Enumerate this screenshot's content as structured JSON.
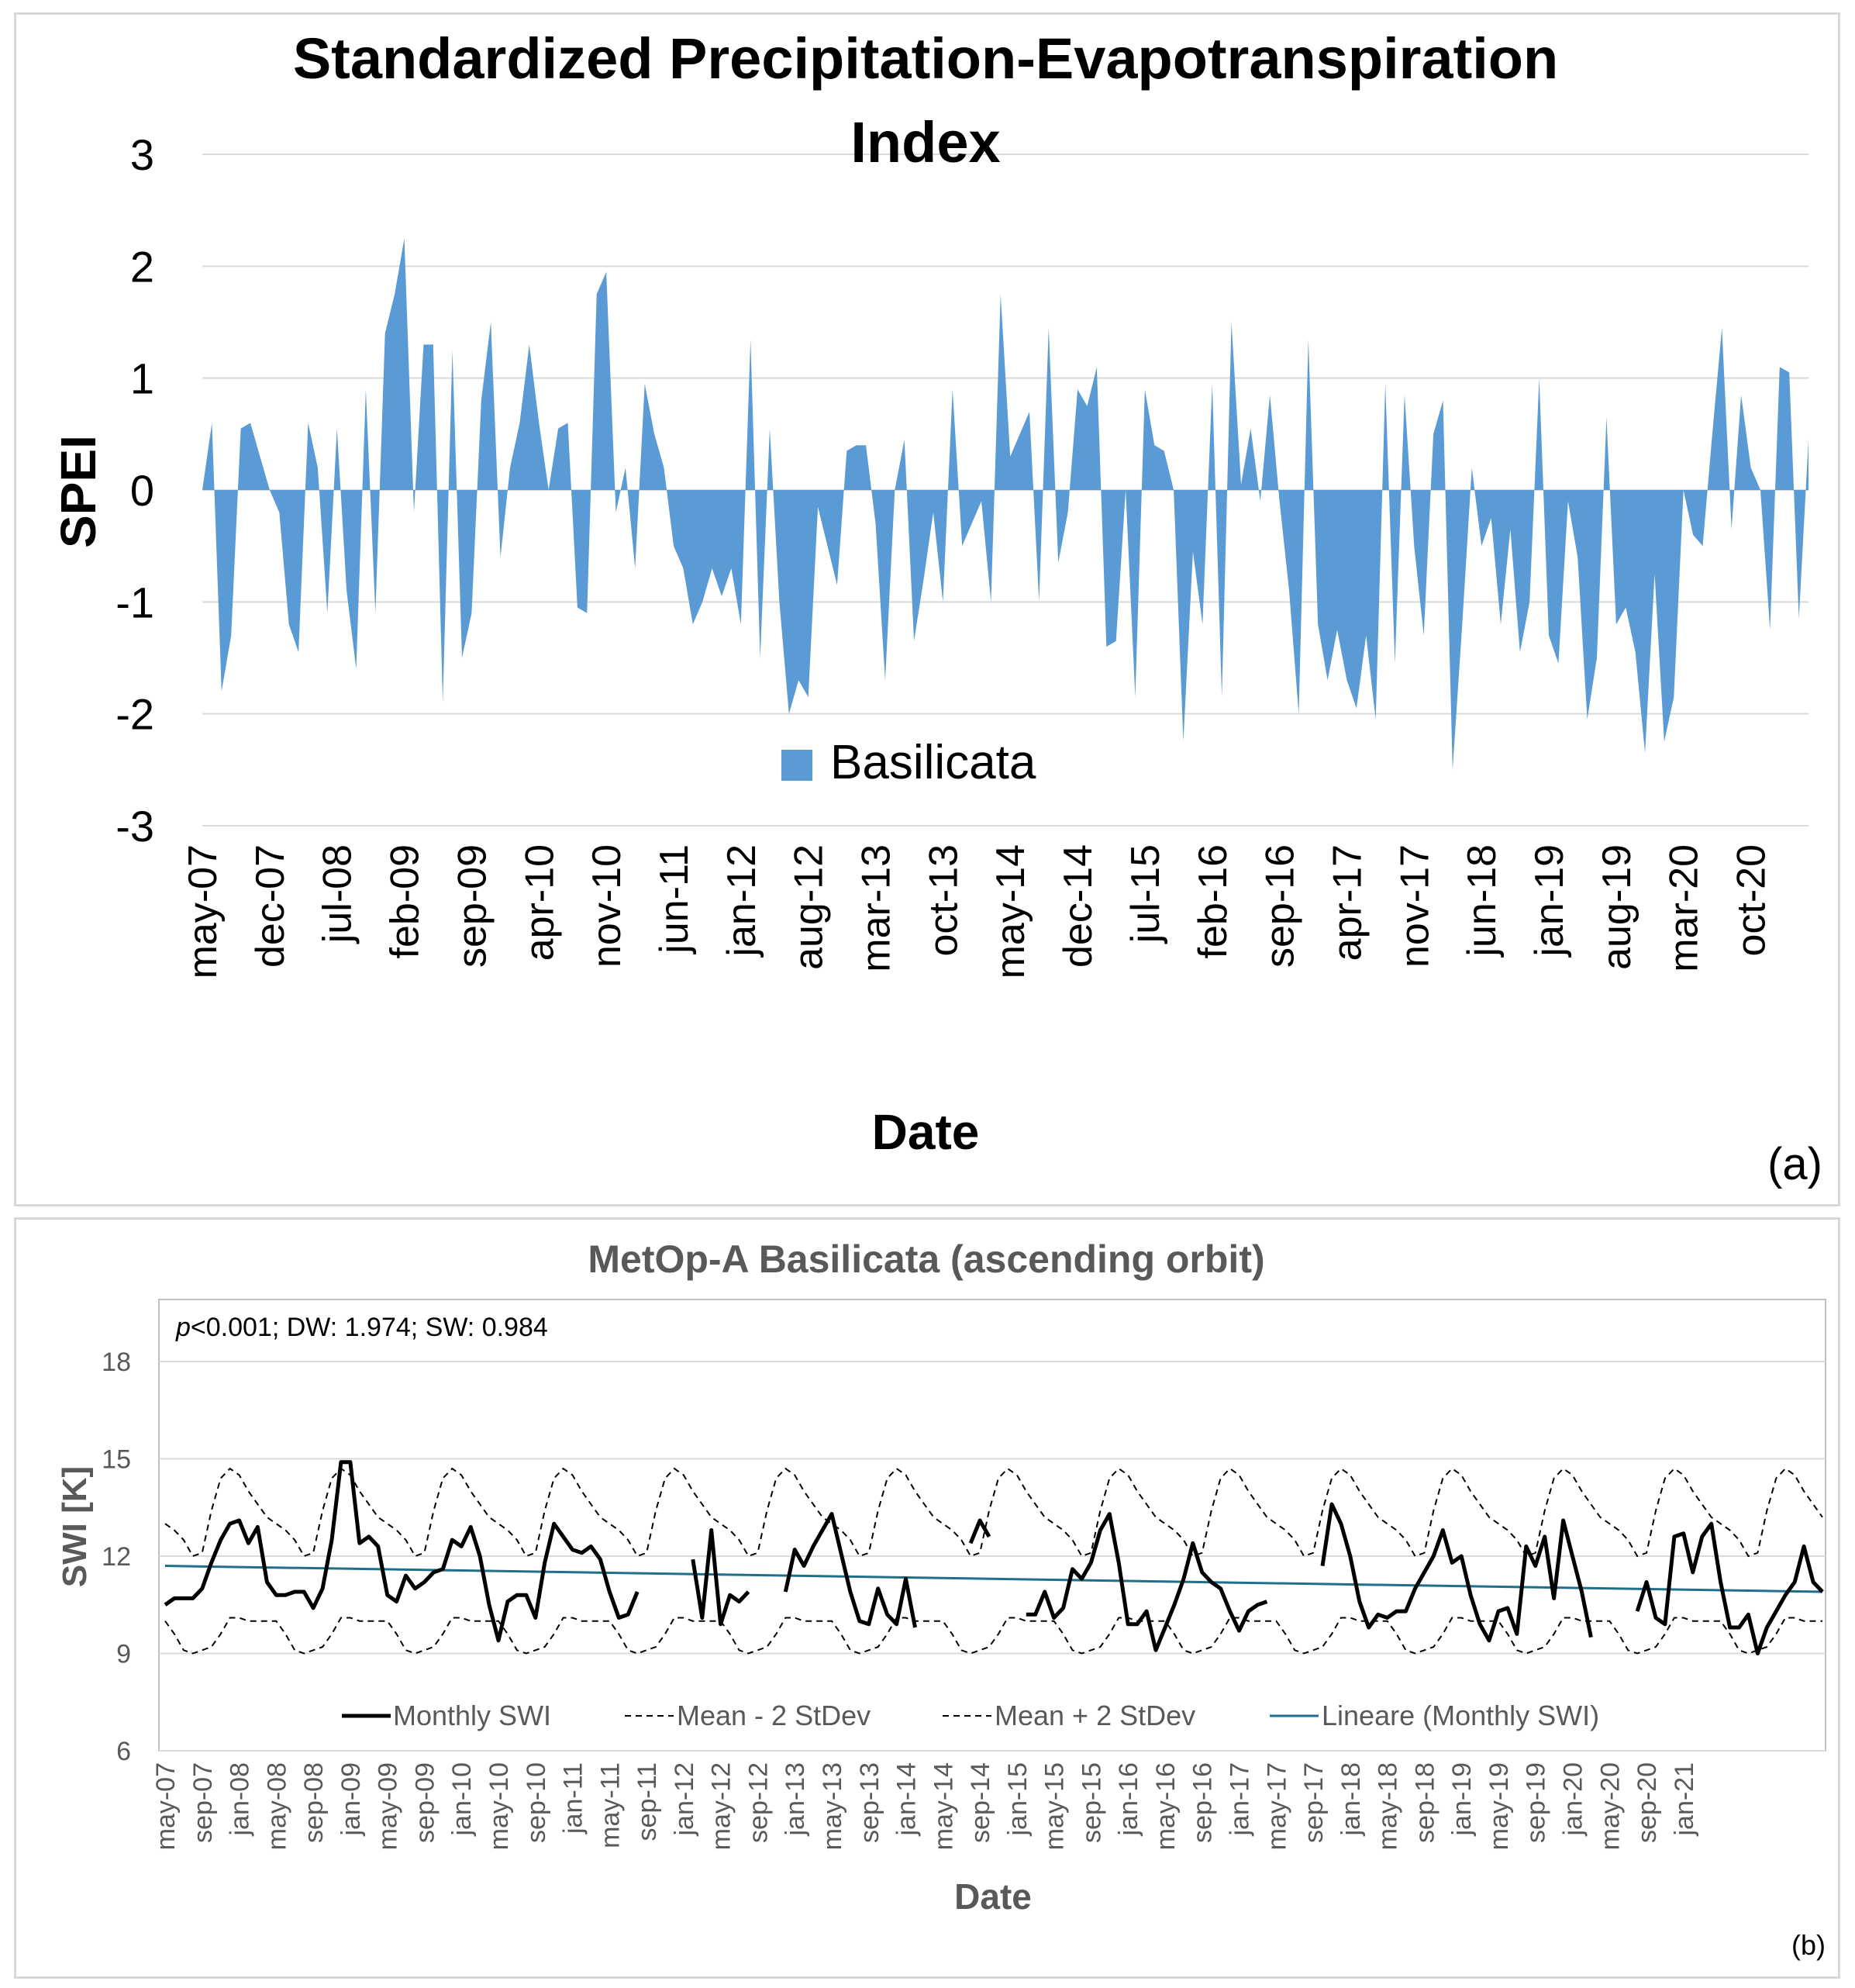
{
  "chart_data": [
    {
      "type": "area",
      "title": "Standardized Precipitation-Evapotranspiration Index",
      "xlabel": "Date",
      "ylabel": "SPEI",
      "ylim": [
        -3,
        3
      ],
      "yticks": [
        "3",
        "2",
        "1",
        "0",
        "-1",
        "-2",
        "-3"
      ],
      "panel_label": "(a)",
      "grid": true,
      "legend": "center-bottom",
      "color": "#5b9bd5",
      "x_ticks": [
        "may-07",
        "dec-07",
        "jul-08",
        "feb-09",
        "sep-09",
        "apr-10",
        "nov-10",
        "jun-11",
        "jan-12",
        "aug-12",
        "mar-13",
        "oct-13",
        "may-14",
        "dec-14",
        "jul-15",
        "feb-16",
        "sep-16",
        "apr-17",
        "nov-17",
        "jun-18",
        "jan-19",
        "aug-19",
        "mar-20",
        "oct-20"
      ],
      "x_start": "may-07",
      "series": [
        {
          "name": "Basilicata",
          "values": [
            0.0,
            0.6,
            -1.8,
            -1.3,
            0.55,
            0.6,
            0.3,
            0.0,
            -0.2,
            -1.2,
            -1.45,
            0.6,
            0.2,
            -1.1,
            0.55,
            -0.9,
            -1.6,
            0.9,
            -1.1,
            1.4,
            1.75,
            2.25,
            -0.2,
            1.3,
            1.3,
            -1.9,
            1.25,
            -1.5,
            -1.1,
            0.8,
            1.5,
            -0.6,
            0.2,
            0.6,
            1.3,
            0.6,
            0.0,
            0.55,
            0.6,
            -1.05,
            -1.1,
            1.75,
            1.95,
            -0.2,
            0.2,
            -0.7,
            0.95,
            0.5,
            0.2,
            -0.5,
            -0.7,
            -1.2,
            -1.0,
            -0.7,
            -0.95,
            -0.7,
            -1.2,
            1.35,
            -1.5,
            0.55,
            -1.0,
            -2.0,
            -1.7,
            -1.85,
            -0.15,
            -0.5,
            -0.85,
            0.35,
            0.4,
            0.4,
            -0.3,
            -1.7,
            0.0,
            0.45,
            -1.35,
            -0.8,
            -0.2,
            -1.0,
            0.9,
            -0.5,
            -0.3,
            -0.1,
            -1.0,
            1.75,
            0.3,
            0.5,
            0.7,
            -1.0,
            1.45,
            -0.65,
            -0.2,
            0.9,
            0.75,
            1.1,
            -1.4,
            -1.35,
            0.0,
            -1.85,
            0.9,
            0.4,
            0.35,
            0.0,
            -2.25,
            -0.55,
            -1.2,
            0.95,
            -1.85,
            1.5,
            0.05,
            0.55,
            -0.1,
            0.85,
            -0.1,
            -0.9,
            -2.0,
            1.35,
            -1.2,
            -1.7,
            -1.25,
            -1.7,
            -1.95,
            -1.3,
            -2.05,
            0.95,
            -1.55,
            0.85,
            -0.5,
            -1.3,
            0.5,
            0.8,
            -2.5,
            -1.2,
            0.2,
            -0.5,
            -0.25,
            -1.2,
            -0.35,
            -1.45,
            -1.0,
            1.0,
            -1.3,
            -1.55,
            -0.1,
            -0.6,
            -2.05,
            -1.5,
            0.65,
            -1.2,
            -1.05,
            -1.45,
            -2.35,
            -0.75,
            -2.25,
            -1.85,
            0.0,
            -0.4,
            -0.5,
            0.5,
            1.45,
            -0.35,
            0.85,
            0.2,
            0.0,
            -1.25,
            1.1,
            1.05,
            -1.15,
            0.45
          ]
        }
      ]
    },
    {
      "type": "line",
      "title": "MetOp-A Basilicata (ascending orbit)",
      "xlabel": "Date",
      "ylabel": "SWI [K]",
      "ylim": [
        6,
        18
      ],
      "yticks": [
        "18",
        "15",
        "12",
        "9",
        "6"
      ],
      "annotation_p": "p",
      "annotation_rest": "<0.001; DW: 1.974; SW: 0.984",
      "panel_label": "(b)",
      "grid": true,
      "legend": "bottom-inside",
      "x_ticks": [
        "may-07",
        "sep-07",
        "jan-08",
        "may-08",
        "sep-08",
        "jan-09",
        "may-09",
        "sep-09",
        "jan-10",
        "may-10",
        "sep-10",
        "jan-11",
        "may-11",
        "sep-11",
        "jan-12",
        "may-12",
        "sep-12",
        "jan-13",
        "may-13",
        "sep-13",
        "jan-14",
        "may-14",
        "sep-14",
        "jan-15",
        "may-15",
        "sep-15",
        "jan-16",
        "may-16",
        "sep-16",
        "jan-17",
        "may-17",
        "sep-17",
        "jan-18",
        "may-18",
        "sep-18",
        "jan-19",
        "may-19",
        "sep-19",
        "jan-20",
        "may-20",
        "sep-20",
        "jan-21"
      ],
      "x_start": "may-07",
      "seasonal_mean": [
        11.5,
        11.2,
        10.8,
        10.5,
        10.6,
        11.3,
        12.0,
        12.4,
        12.3,
        12.0,
        11.8,
        11.6
      ],
      "seasonal_two_stdev": [
        1.5,
        1.6,
        1.7,
        1.5,
        1.5,
        2.1,
        2.4,
        2.3,
        2.2,
        2.0,
        1.8,
        1.6
      ],
      "trend": {
        "start": 11.7,
        "end": 10.9
      },
      "series": [
        {
          "name": "Monthly SWI",
          "color": "#000000",
          "values": [
            10.5,
            10.7,
            10.7,
            10.7,
            11.0,
            11.8,
            12.5,
            13.0,
            13.1,
            12.4,
            12.9,
            11.2,
            10.8,
            10.8,
            10.9,
            10.9,
            10.4,
            11.0,
            12.5,
            14.9,
            14.9,
            12.4,
            12.6,
            12.3,
            10.8,
            10.6,
            11.4,
            11.0,
            11.2,
            11.5,
            11.6,
            12.5,
            12.3,
            12.9,
            12.0,
            10.5,
            9.4,
            10.6,
            10.8,
            10.8,
            10.1,
            11.8,
            13.0,
            12.6,
            12.2,
            12.1,
            12.3,
            11.9,
            10.9,
            10.1,
            10.2,
            10.9,
            null,
            null,
            null,
            null,
            null,
            11.9,
            10.1,
            12.8,
            9.9,
            10.8,
            10.6,
            10.9,
            null,
            null,
            null,
            10.9,
            12.2,
            11.7,
            12.3,
            12.8,
            13.3,
            12.1,
            10.9,
            10.0,
            9.9,
            11.0,
            10.2,
            9.9,
            11.3,
            9.8,
            null,
            null,
            null,
            null,
            null,
            12.4,
            13.1,
            12.6,
            null,
            null,
            null,
            10.2,
            10.2,
            10.9,
            10.1,
            10.4,
            11.6,
            11.3,
            11.8,
            12.8,
            13.3,
            11.8,
            9.9,
            9.9,
            10.3,
            9.1,
            9.8,
            10.5,
            11.3,
            12.4,
            11.5,
            11.2,
            11.0,
            10.3,
            9.7,
            10.3,
            10.5,
            10.6,
            null,
            null,
            null,
            null,
            null,
            11.7,
            13.6,
            13.0,
            12.0,
            10.6,
            9.8,
            10.2,
            10.1,
            10.3,
            10.3,
            11.0,
            11.5,
            12.0,
            12.8,
            11.8,
            12.0,
            10.8,
            9.9,
            9.4,
            10.3,
            10.4,
            9.6,
            12.3,
            11.7,
            12.6,
            10.7,
            13.1,
            12.0,
            10.9,
            9.5,
            null,
            null,
            null,
            null,
            10.3,
            11.2,
            10.1,
            9.9,
            12.6,
            12.7,
            11.5,
            12.6,
            13.0,
            11.2,
            9.8,
            9.8,
            10.2,
            9.0,
            9.8,
            10.3,
            10.8,
            11.2,
            12.3,
            11.2,
            10.9
          ]
        },
        {
          "name": "Mean - 2 StDev",
          "color": "#000000"
        },
        {
          "name": "Mean + 2 StDev",
          "color": "#000000"
        },
        {
          "name": "Lineare (Monthly SWI)",
          "color": "#1f6f8b"
        }
      ]
    }
  ]
}
